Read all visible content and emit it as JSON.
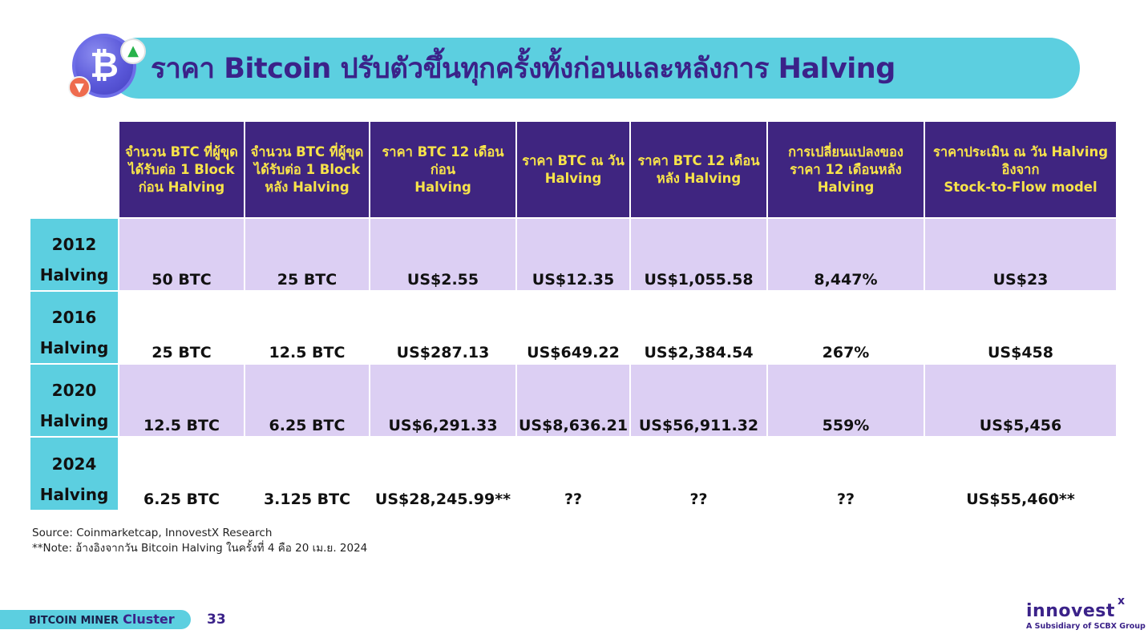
{
  "title": "ราคา Bitcoin ปรับตัวขึ้นทุกครั้งทั้งก่อนและหลังการ Halving",
  "title_icon": "bitcoin-icon",
  "table": {
    "headers": [
      "จำนวน BTC ที่ผู้ขุด\nได้รับต่อ 1 Block\nก่อน Halving",
      "จำนวน BTC ที่ผู้ขุด\nได้รับต่อ 1 Block\nหลัง Halving",
      "ราคา BTC 12 เดือนก่อน\nHalving",
      "ราคา BTC ณ วัน\nHalving",
      "ราคา BTC 12 เดือน\nหลัง Halving",
      "การเปลี่ยนแปลงของ\nราคา 12 เดือนหลัง\nHalving",
      "ราคาประเมิน ณ วัน Halving\nอิงจาก\nStock-to-Flow model"
    ],
    "rows": [
      {
        "label": "2012\nHalving",
        "cells": [
          "50 BTC",
          "25 BTC",
          "US$2.55",
          "US$12.35",
          "US$1,055.58",
          "8,447%",
          "US$23"
        ]
      },
      {
        "label": "2016\nHalving",
        "cells": [
          "25 BTC",
          "12.5 BTC",
          "US$287.13",
          "US$649.22",
          "US$2,384.54",
          "267%",
          "US$458"
        ]
      },
      {
        "label": "2020\nHalving",
        "cells": [
          "12.5 BTC",
          "6.25 BTC",
          "US$6,291.33",
          "US$8,636.21",
          "US$56,911.32",
          "559%",
          "US$5,456"
        ]
      },
      {
        "label": "2024\nHalving",
        "cells": [
          "6.25 BTC",
          "3.125 BTC",
          "US$28,245.99**",
          "??",
          "??",
          "??",
          "US$55,460**"
        ]
      }
    ]
  },
  "notes": {
    "source": "Source: Coinmarketcap, InnovestX Research",
    "note": "**Note: อ้างอิงจากวัน Bitcoin Halving ในครั้งที่ 4 คือ 20 เม.ย. 2024"
  },
  "footer": {
    "cluster_main": "BITCOIN MINER",
    "cluster_accent": "Cluster",
    "page_number": "33",
    "logo": "innovest",
    "logo_x": "x",
    "logo_sub": "A Subsidiary of SCBX Group"
  },
  "colors": {
    "header_bg": "#3f2580",
    "header_text": "#f7e34a",
    "accent_cyan": "#5ccfe0",
    "row_shade": "#dccff3",
    "title_text": "#3b2289"
  }
}
